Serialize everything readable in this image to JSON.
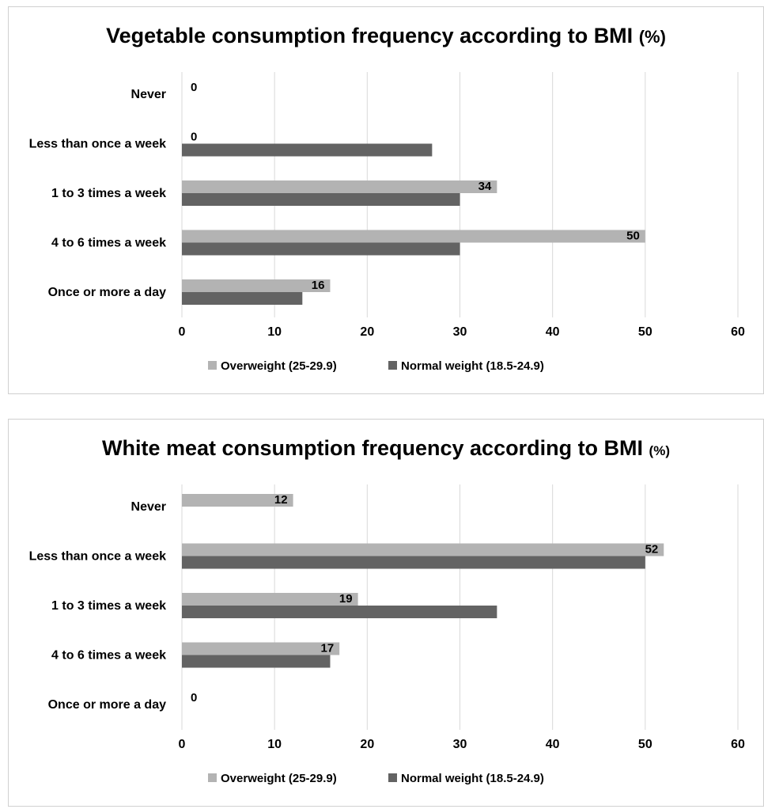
{
  "chart_data": [
    {
      "type": "bar",
      "orientation": "horizontal",
      "title": "Vegetable consumption frequency according to BMI (%)",
      "title_main": "Vegetable consumption frequency according to BMI",
      "title_suffix": "(%)",
      "categories": [
        "Never",
        "Less than once a week",
        "1 to 3 times a week",
        "4 to 6 times a week",
        "Once or more a day"
      ],
      "series": [
        {
          "name": "Overweight (25-29.9)",
          "color": "#b3b3b3",
          "values": [
            0,
            0,
            34,
            50,
            16
          ],
          "labels": [
            "0",
            "0",
            "34",
            "50",
            "16"
          ]
        },
        {
          "name": "Normal weight (18.5-24.9)",
          "color": "#636363",
          "values": [
            0,
            27,
            30,
            30,
            13
          ]
        }
      ],
      "xlim": [
        0,
        60
      ],
      "xticks": [
        "0",
        "10",
        "20",
        "30",
        "40",
        "50",
        "60"
      ],
      "grid": true,
      "legend": "bottom"
    },
    {
      "type": "bar",
      "orientation": "horizontal",
      "title": "White meat consumption frequency according to BMI (%)",
      "title_main": "White meat consumption frequency according to BMI",
      "title_suffix": "(%)",
      "categories": [
        "Never",
        "Less than once a week",
        "1 to 3 times a week",
        "4 to 6 times a week",
        "Once or more a day"
      ],
      "series": [
        {
          "name": "Overweight (25-29.9)",
          "color": "#b3b3b3",
          "values": [
            12,
            52,
            19,
            17,
            0
          ],
          "labels": [
            "12",
            "52",
            "19",
            "17",
            "0"
          ]
        },
        {
          "name": "Normal weight (18.5-24.9)",
          "color": "#636363",
          "values": [
            0,
            50,
            34,
            16,
            0
          ]
        }
      ],
      "xlim": [
        0,
        60
      ],
      "xticks": [
        "0",
        "10",
        "20",
        "30",
        "40",
        "50",
        "60"
      ],
      "grid": true,
      "legend": "bottom"
    }
  ]
}
